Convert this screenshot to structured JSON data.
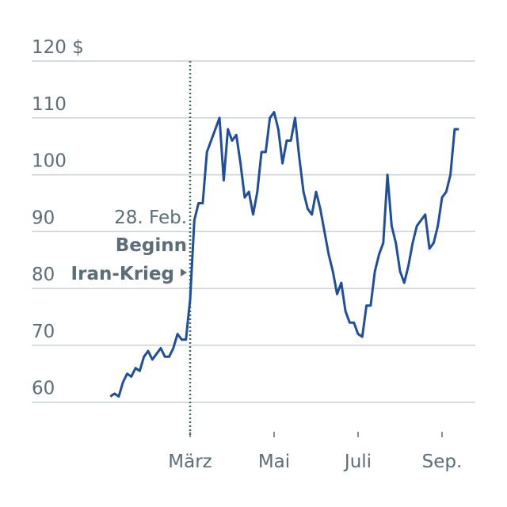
{
  "chart_data": {
    "type": "line",
    "categories": [
      null,
      null,
      null,
      null,
      null,
      null,
      null,
      null,
      null,
      null,
      null,
      null,
      null,
      null,
      null,
      null,
      null,
      null,
      null,
      "März",
      null,
      null,
      null,
      null,
      null,
      null,
      null,
      null,
      null,
      null,
      null,
      null,
      null,
      null,
      null,
      null,
      null,
      null,
      null,
      "Mai",
      null,
      null,
      null,
      null,
      null,
      null,
      null,
      null,
      null,
      null,
      null,
      null,
      null,
      null,
      null,
      null,
      null,
      null,
      null,
      "Juli",
      null,
      null,
      null,
      null,
      null,
      null,
      null,
      null,
      null,
      null,
      null,
      null,
      null,
      null,
      null,
      null,
      null,
      null,
      null,
      "Sep.",
      null,
      null,
      null,
      null
    ],
    "series": [
      {
        "color": "#1f4e9e",
        "values": [
          61,
          61.5,
          61,
          63.5,
          65,
          64.5,
          66,
          65.5,
          68,
          69,
          67.5,
          68.5,
          69.5,
          68,
          68,
          69.5,
          72,
          71,
          71,
          78,
          92,
          95,
          95,
          104,
          106,
          108,
          110,
          99,
          108,
          106,
          107,
          102,
          96,
          97,
          93,
          97,
          104,
          104,
          110,
          111,
          108,
          102,
          106,
          106,
          110,
          103,
          97,
          94,
          93,
          97,
          94,
          90,
          86,
          83,
          79,
          81,
          76,
          74,
          74,
          72,
          71.5,
          77,
          77,
          83,
          86,
          88,
          100,
          91,
          88,
          83,
          81,
          84,
          88,
          91,
          92,
          93,
          87,
          88,
          91,
          96,
          97,
          100,
          108,
          108
        ]
      }
    ],
    "ylim": [
      55.5,
      120
    ],
    "yticks": [
      60,
      70,
      80,
      90,
      100,
      110,
      {
        "value": 120,
        "label": "120 $"
      }
    ],
    "grid": true,
    "annotation": {
      "date": "28. Feb.",
      "lines": [
        "Beginn",
        "Iran-Krieg"
      ]
    }
  }
}
